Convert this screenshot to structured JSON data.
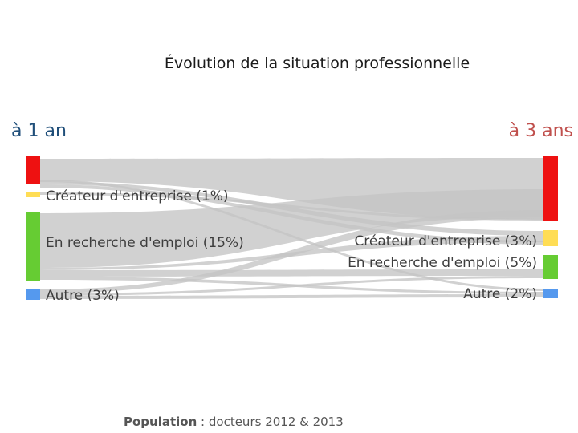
{
  "title": "Évolution de la situation professionnelle",
  "left_header": "à 1 an",
  "right_header": "à 3 ans",
  "footer": {
    "label": "Population",
    "separator": " : ",
    "text": "docteurs 2012 & 2013"
  },
  "left_labels": {
    "createur": "Créateur d'entreprise (1%)",
    "recherche": "En recherche d'emploi (15%)",
    "autre": "Autre (3%)"
  },
  "right_labels": {
    "createur": "Créateur d'entreprise (3%)",
    "recherche": "En recherche d'emploi (5%)",
    "autre": "Autre (2%)"
  },
  "colors": {
    "emploi": "#ee1111",
    "createur": "#ffdd55",
    "recherche": "#66cc33",
    "autre": "#5599ee",
    "flow": "#c4c4c4",
    "left_header": "#1f4e79",
    "right_header": "#c0504d"
  }
}
